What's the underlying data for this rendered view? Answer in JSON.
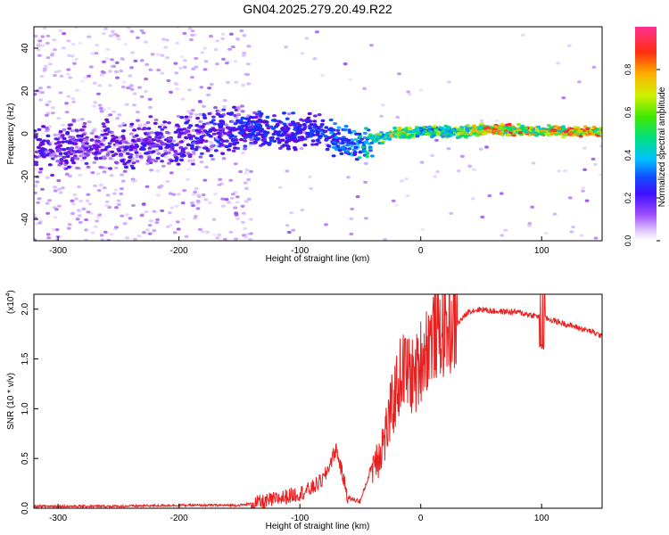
{
  "figure": {
    "title": "GN04.2025.279.20.49.R22"
  },
  "chart_data": [
    {
      "type": "heatmap",
      "xlabel": "Height of straight line (km)",
      "ylabel": "Frequency (Hz)",
      "xlim": [
        -320,
        150
      ],
      "ylim": [
        -50,
        50
      ],
      "xticks": [
        -300,
        -200,
        -100,
        0,
        100
      ],
      "yticks": [
        -40,
        -20,
        0,
        20,
        40
      ],
      "colorbar": {
        "label": "Normalized spectral amplitude",
        "range": [
          0,
          1
        ],
        "ticks": [
          "0.0",
          "0.2",
          "0.4",
          "0.6",
          "0.8"
        ],
        "colormap": [
          "#ffffff",
          "#c8a0ff",
          "#6a00e0",
          "#1030ff",
          "#00c0ff",
          "#00e060",
          "#c8f000",
          "#ffa000",
          "#ff2020",
          "#ff3090"
        ]
      },
      "trend": [
        {
          "x": -320,
          "f": -7,
          "amp": 0.28
        },
        {
          "x": -250,
          "f": -6,
          "amp": 0.28
        },
        {
          "x": -200,
          "f": -4,
          "amp": 0.3
        },
        {
          "x": -150,
          "f": 3,
          "amp": 0.34
        },
        {
          "x": -110,
          "f": 0,
          "amp": 0.36
        },
        {
          "x": -90,
          "f": 2,
          "amp": 0.36
        },
        {
          "x": -70,
          "f": -3,
          "amp": 0.42
        },
        {
          "x": -50,
          "f": -5,
          "amp": 0.5
        },
        {
          "x": -35,
          "f": -2,
          "amp": 0.62
        },
        {
          "x": -20,
          "f": 0,
          "amp": 0.78
        },
        {
          "x": 0,
          "f": 1,
          "amp": 0.6
        },
        {
          "x": 40,
          "f": 1,
          "amp": 0.72
        },
        {
          "x": 60,
          "f": 2,
          "amp": 0.9
        },
        {
          "x": 100,
          "f": 1,
          "amp": 0.85
        },
        {
          "x": 150,
          "f": 1,
          "amp": 0.9
        }
      ]
    },
    {
      "type": "line",
      "xlabel": "Height of straight line (km)",
      "ylabel": "SNR (10 * v/v)",
      "exponent_label": "(x10",
      "exponent_power": "4",
      "exponent_close": ")",
      "xlim": [
        -320,
        150
      ],
      "ylim": [
        0,
        2.15
      ],
      "xticks": [
        -300,
        -200,
        -100,
        0,
        100
      ],
      "yticks": [
        "0.0",
        "0.5",
        "1.0",
        "1.5",
        "2.0"
      ],
      "line_color": "#e82020",
      "series": [
        {
          "name": "SNR",
          "x": [
            -320,
            -250,
            -200,
            -150,
            -130,
            -110,
            -100,
            -90,
            -80,
            -75,
            -70,
            -65,
            -60,
            -50,
            -45,
            -40,
            -35,
            -30,
            -25,
            -20,
            -15,
            -10,
            -5,
            0,
            10,
            20,
            30,
            40,
            50,
            60,
            80,
            100,
            120,
            140,
            150
          ],
          "y": [
            0.02,
            0.02,
            0.03,
            0.03,
            0.06,
            0.12,
            0.15,
            0.2,
            0.3,
            0.45,
            0.6,
            0.35,
            0.1,
            0.07,
            0.25,
            0.45,
            0.55,
            0.7,
            0.95,
            1.2,
            1.4,
            1.35,
            1.3,
            1.5,
            1.75,
            1.8,
            1.85,
            1.98,
            2.0,
            1.98,
            1.97,
            1.92,
            1.85,
            1.78,
            1.73
          ]
        }
      ]
    }
  ]
}
